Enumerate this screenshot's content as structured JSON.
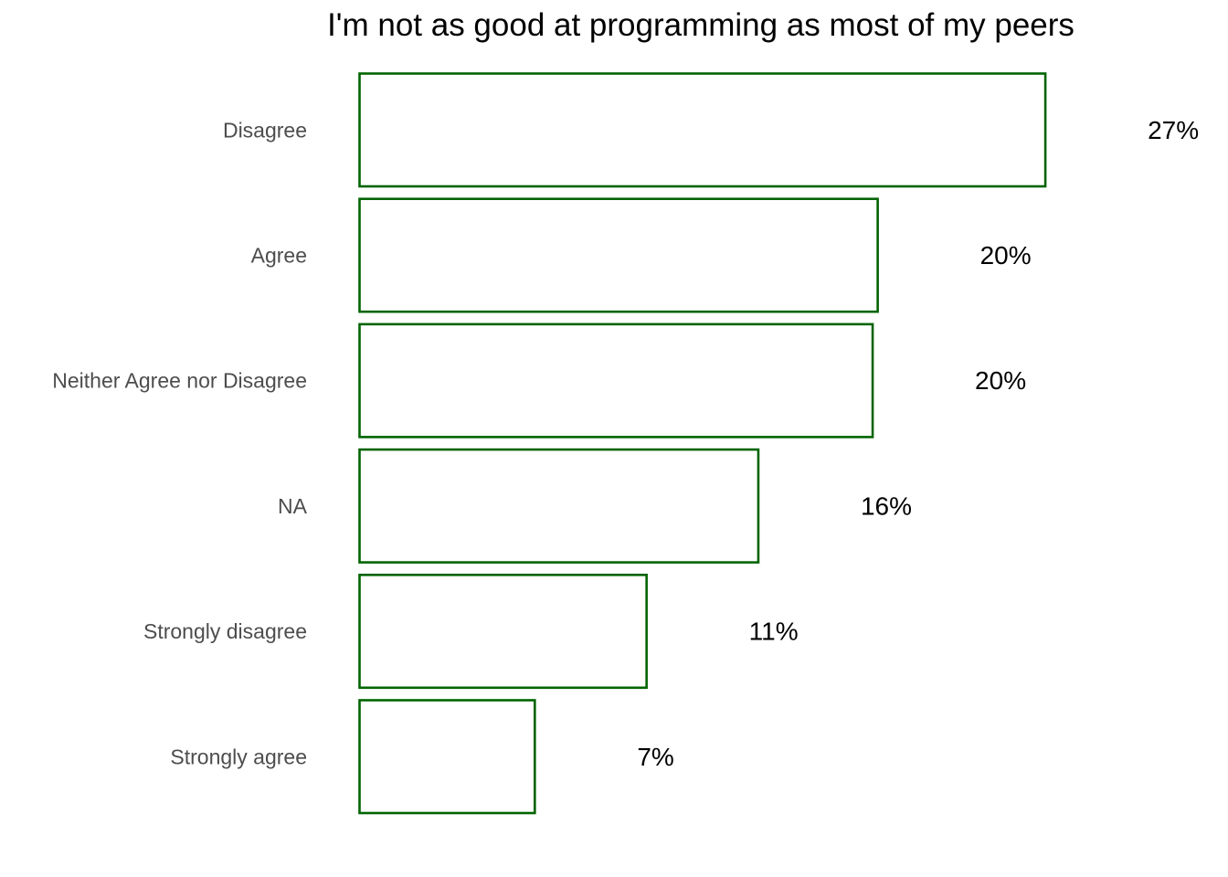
{
  "chart_data": {
    "type": "bar",
    "orientation": "horizontal",
    "title": "I'm not as good at programming as most of my peers",
    "xlabel": "",
    "ylabel": "",
    "categories": [
      "Disagree",
      "Agree",
      "Neither Agree nor Disagree",
      "NA",
      "Strongly disagree",
      "Strongly agree"
    ],
    "values": [
      27,
      20.4,
      20.2,
      15.7,
      11.3,
      6.9
    ],
    "value_labels": [
      "27%",
      "20%",
      "20%",
      "16%",
      "11%",
      "7%"
    ],
    "grid": false,
    "bar_outline_color": "#006400",
    "bar_fill_color": "#ffffff"
  }
}
